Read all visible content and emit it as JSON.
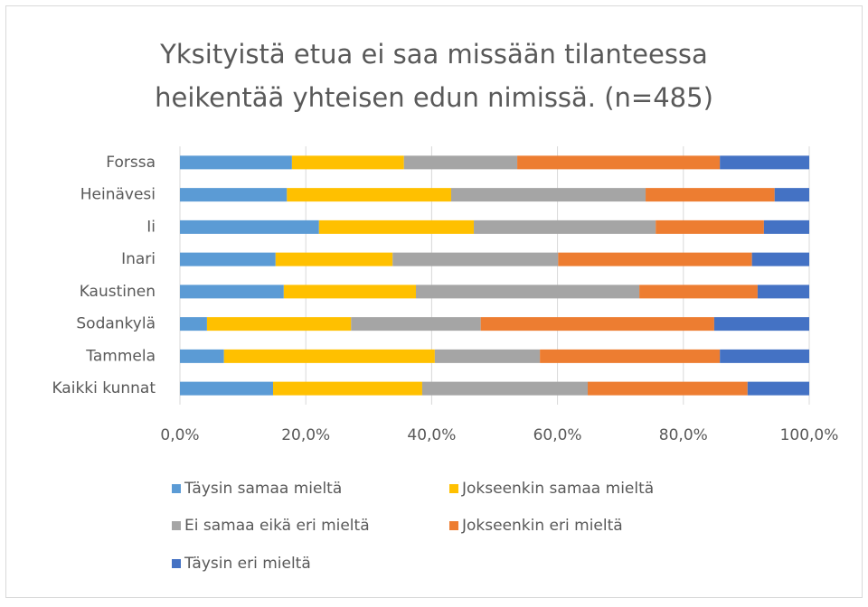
{
  "chart_data": {
    "type": "stacked-barh",
    "title": [
      "Yksityistä etua ei saa missään tilanteessa",
      "heikentää yhteisen edun nimissä. (n=485)"
    ],
    "categories": [
      "Forssa",
      "Heinävesi",
      "Ii",
      "Inari",
      "Kaustinen",
      "Sodankylä",
      "Tammela",
      "Kaikki kunnat"
    ],
    "series": [
      {
        "name": "Täysin samaa mieltä",
        "color": "#5b9bd5",
        "values": [
          17.8,
          17.0,
          22.1,
          15.2,
          16.5,
          4.3,
          7.0,
          14.8
        ]
      },
      {
        "name": "Jokseenkin samaa mieltä",
        "color": "#ffc000",
        "values": [
          17.8,
          26.1,
          24.6,
          18.6,
          21.0,
          22.9,
          33.5,
          23.7
        ]
      },
      {
        "name": "Ei samaa eikä eri mieltä",
        "color": "#a5a5a5",
        "values": [
          18.0,
          30.9,
          28.9,
          26.3,
          35.5,
          20.6,
          16.7,
          26.3
        ]
      },
      {
        "name": "Jokseenkin eri mieltä",
        "color": "#ed7d31",
        "values": [
          32.2,
          20.5,
          17.2,
          30.8,
          18.8,
          37.1,
          28.6,
          25.4
        ]
      },
      {
        "name": "Täysin eri mieltä",
        "color": "#4472c4",
        "values": [
          14.2,
          5.5,
          7.2,
          9.1,
          8.2,
          15.1,
          14.2,
          9.8
        ]
      }
    ],
    "xlim": [
      0,
      100
    ],
    "xticks": [
      {
        "value": 0,
        "label": "0,0%"
      },
      {
        "value": 20,
        "label": "20,0%"
      },
      {
        "value": 40,
        "label": "40,0%"
      },
      {
        "value": 60,
        "label": "60,0%"
      },
      {
        "value": 80,
        "label": "80,0%"
      },
      {
        "value": 100,
        "label": "100,0%"
      }
    ],
    "grid": true
  }
}
